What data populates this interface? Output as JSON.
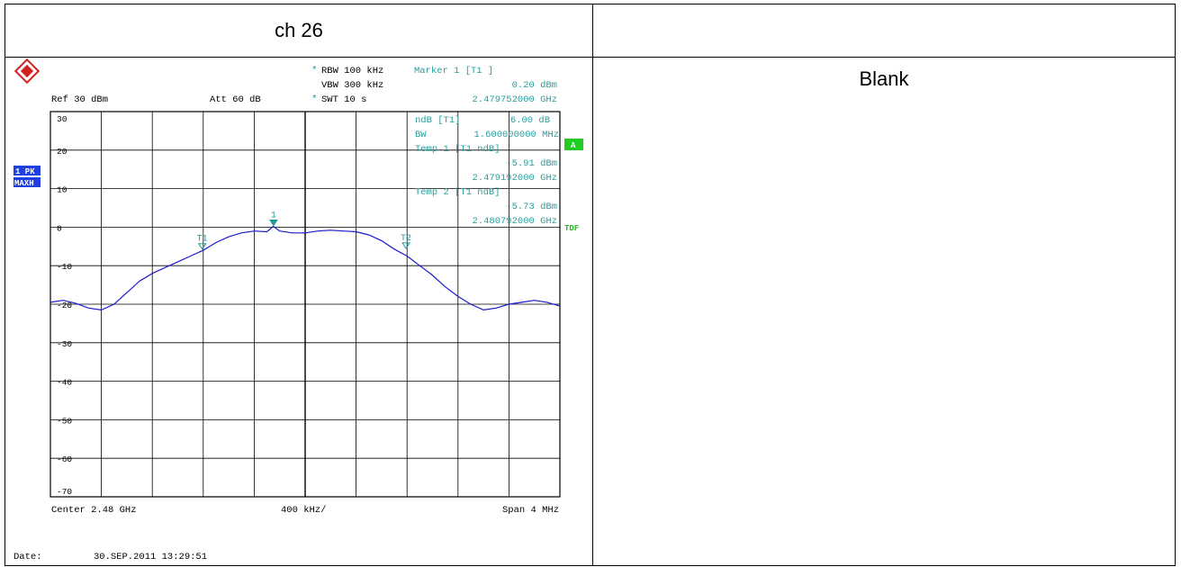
{
  "cell_title": "ch 26",
  "right_cell_text": "Blank",
  "analyzer": {
    "rbw": "RBW 100 kHz",
    "vbw": "VBW 300 kHz",
    "swt": "SWT 10 s",
    "ref": "Ref  30 dBm",
    "att": "Att  60 dB",
    "marker_header": "Marker 1 [T1 ]",
    "marker_level": "0.20 dBm",
    "marker_freq": "2.479752000 GHz",
    "ndb_label": "ndB [T1]",
    "ndb_value": "6.00 dB",
    "bw_label": "BW",
    "bw_value": "1.600000000 MHz",
    "temp1_header": "Temp 1 [T1 ndB]",
    "temp1_level": "-5.91 dBm",
    "temp1_freq": "2.479192000 GHz",
    "temp2_header": "Temp 2 [T1 ndB]",
    "temp2_level": "-5.73 dBm",
    "temp2_freq": "2.480792000 GHz",
    "trace_badge_1": "1 PK",
    "trace_badge_2": "MAXH",
    "a_badge": "A",
    "tdf_label": "TDF",
    "center": "Center 2.48 GHz",
    "div": "400 kHz/",
    "span": "Span 4 MHz",
    "date_label": "Date:",
    "date_value": "30.SEP.2011  13:29:51",
    "colors": {
      "trace": "#1a1acc",
      "readout": "#2a9d9d",
      "badge_blue": "#1f3fe0",
      "badge_green": "#22cc22"
    }
  },
  "chart_data": {
    "type": "line",
    "xlabel": "",
    "ylabel": "",
    "x_unit": "GHz",
    "y_unit": "dBm",
    "xlim": [
      2.478,
      2.482
    ],
    "ylim": [
      -70,
      30
    ],
    "y_ticks": [
      "30",
      "20",
      "10",
      "0",
      "-10",
      "-20",
      "-30",
      "-40",
      "-50",
      "-60",
      "-70"
    ],
    "grid": true,
    "series": [
      {
        "x": [
          2.478,
          2.4781,
          2.4782,
          2.4783,
          2.4784,
          2.4785,
          2.4786,
          2.4787,
          2.4788,
          2.4789,
          2.479,
          2.4791,
          2.4792,
          2.4793,
          2.4794,
          2.4795,
          2.4796,
          2.4797,
          2.47975,
          2.4798,
          2.4799,
          2.48,
          2.4801,
          2.4802,
          2.4803,
          2.4804,
          2.4805,
          2.4806,
          2.4807,
          2.4808,
          2.4809,
          2.481,
          2.4811,
          2.4812,
          2.4813,
          2.4814,
          2.4815,
          2.4816,
          2.4817,
          2.4818,
          2.4819,
          2.482
        ],
        "y": [
          -19.5,
          -19,
          -19.8,
          -21,
          -21.5,
          -20,
          -17,
          -14,
          -12,
          -10.5,
          -9,
          -7.5,
          -6,
          -4,
          -2.5,
          -1.5,
          -1,
          -1.2,
          0.2,
          -1,
          -1.5,
          -1.5,
          -1,
          -0.8,
          -1,
          -1.2,
          -2,
          -3.5,
          -5.7,
          -7.5,
          -10,
          -12.5,
          -15.5,
          -18,
          -20,
          -21.5,
          -21,
          -20,
          -19.5,
          -19,
          -19.5,
          -20.5
        ]
      }
    ],
    "markers": [
      {
        "label": "1",
        "x": 2.479752,
        "y": 0.2
      },
      {
        "label": "T1",
        "x": 2.479192,
        "y": -5.91
      },
      {
        "label": "T2",
        "x": 2.480792,
        "y": -5.73
      }
    ]
  }
}
